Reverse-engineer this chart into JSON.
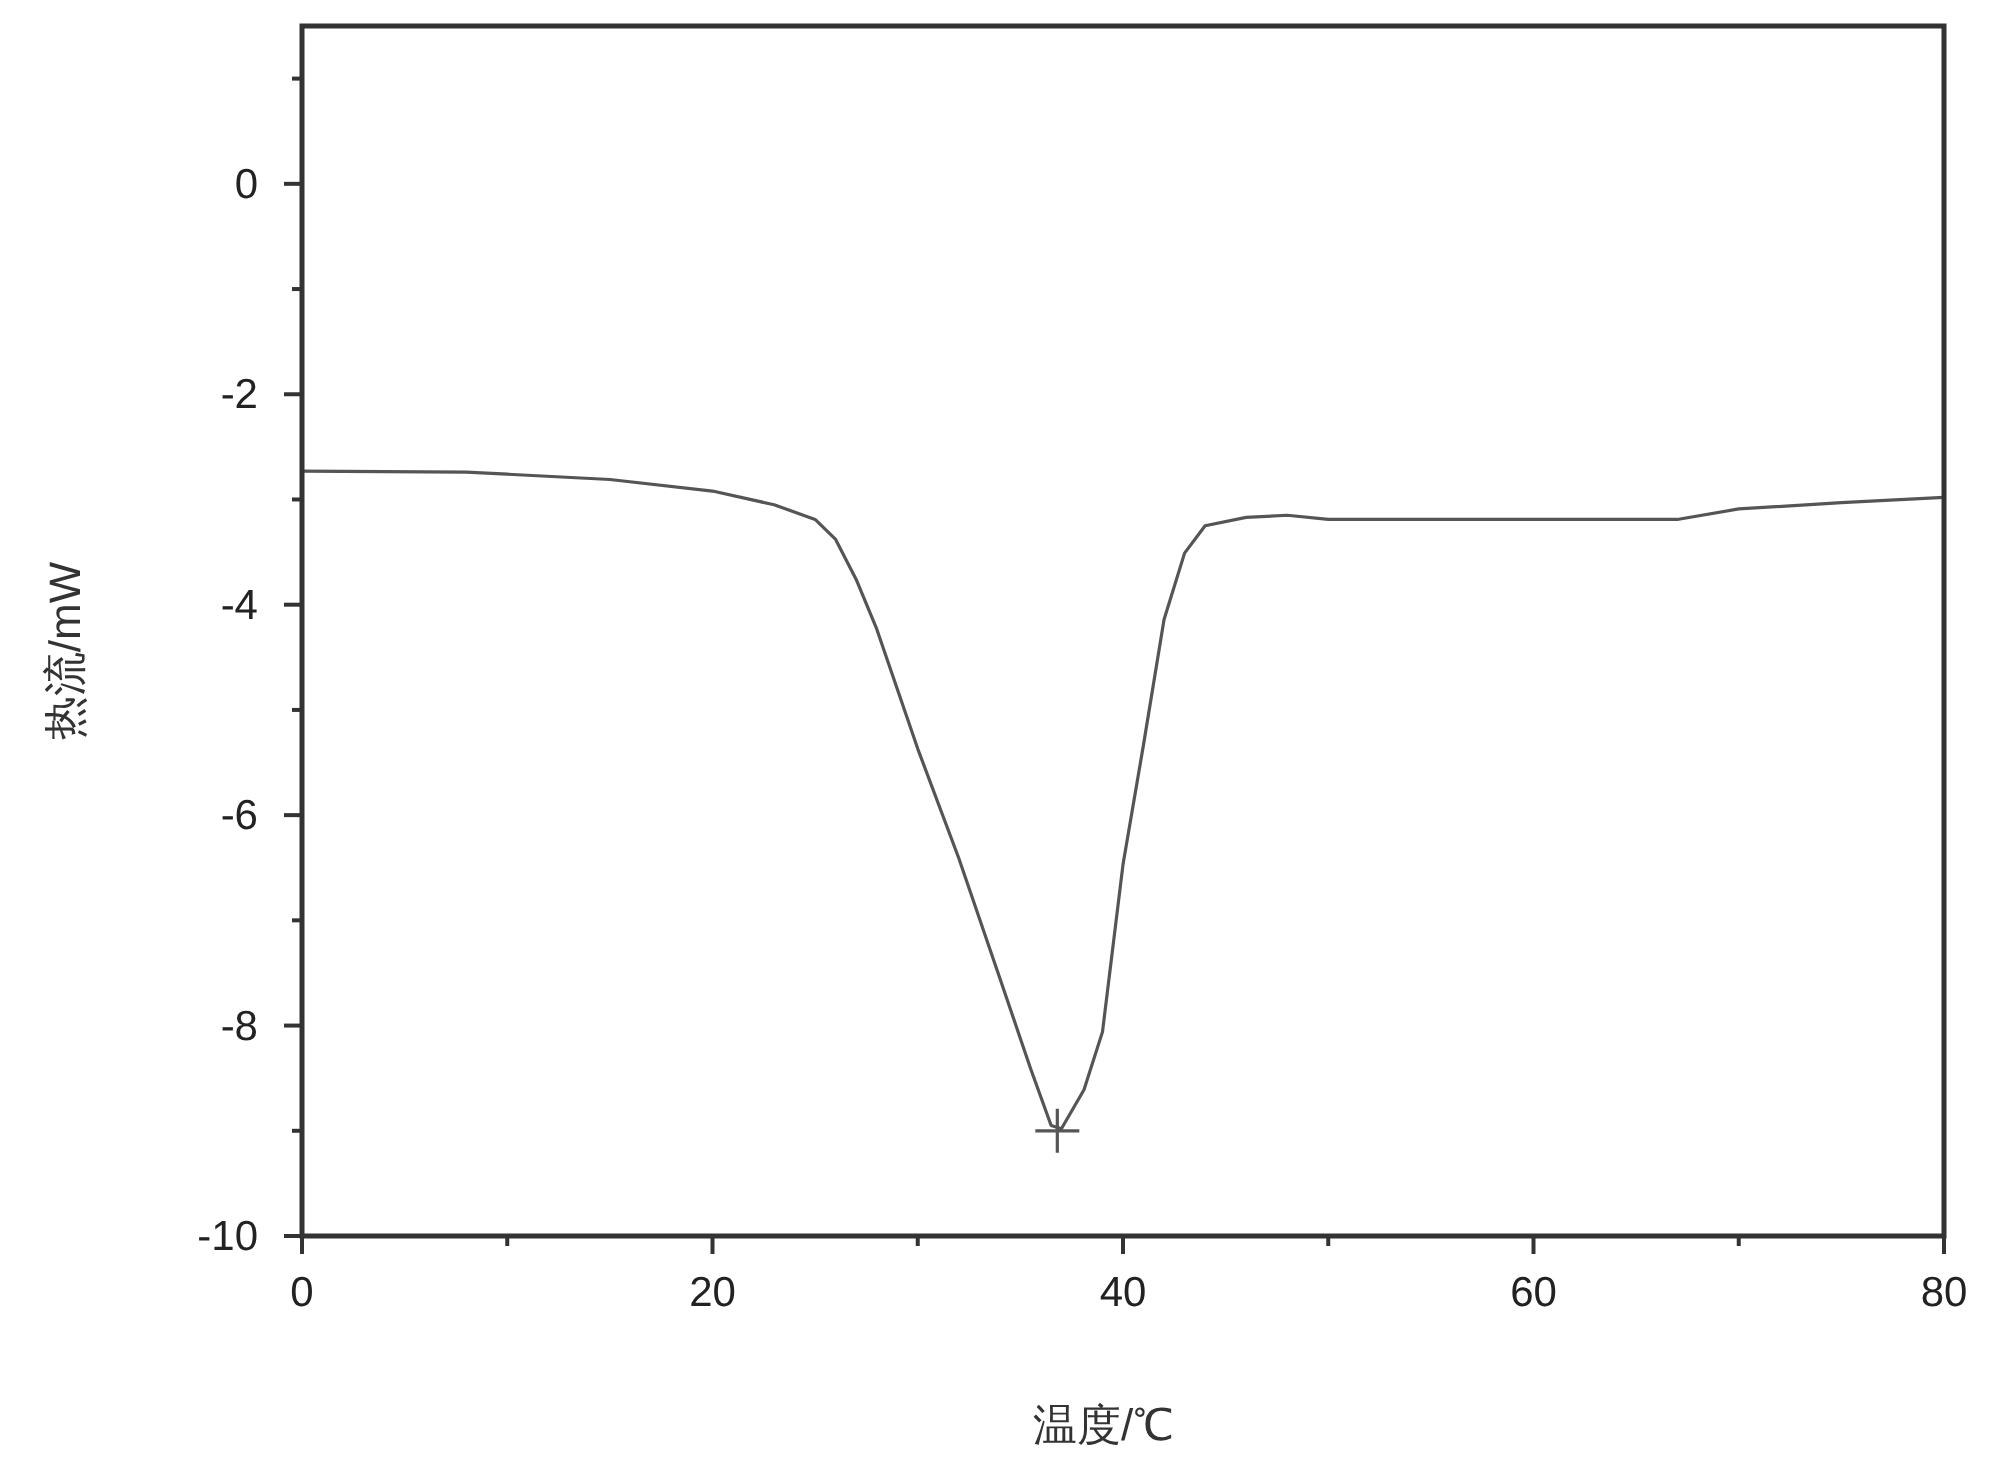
{
  "chart_data": {
    "type": "line",
    "xlabel": "温度/℃",
    "ylabel": "热流/mW",
    "xlim": [
      0,
      80
    ],
    "ylim": [
      -10,
      1.5
    ],
    "xticks": [
      0,
      {
        "value": 10,
        "label": null
      },
      20,
      {
        "value": 30,
        "label": null
      },
      40,
      {
        "value": 50,
        "label": null
      },
      60,
      {
        "value": 70,
        "label": null
      },
      80
    ],
    "yticks": [
      -10,
      {
        "value": -9,
        "label": null
      },
      -8,
      {
        "value": -7,
        "label": null
      },
      -6,
      {
        "value": -5,
        "label": null
      },
      -4,
      {
        "value": -3,
        "label": null
      },
      -2,
      {
        "value": -1,
        "label": null
      },
      0,
      {
        "value": 1,
        "label": null
      }
    ],
    "grid": false,
    "series": [
      {
        "color": "#555555",
        "marker": "none",
        "x": [
          0,
          8,
          10,
          15,
          20,
          23,
          25,
          26,
          27,
          28,
          30,
          32,
          34,
          35.5,
          36.5,
          37,
          38.1,
          39,
          40,
          41,
          42,
          43,
          44,
          46,
          48,
          50,
          60,
          67,
          70,
          75,
          80
        ],
        "values": [
          -2.73,
          -2.74,
          -2.76,
          -2.81,
          -2.92,
          -3.05,
          -3.19,
          -3.38,
          -3.76,
          -4.23,
          -5.37,
          -6.41,
          -7.55,
          -8.41,
          -8.95,
          -8.98,
          -8.61,
          -8.06,
          -6.47,
          -5.33,
          -4.14,
          -3.51,
          -3.25,
          -3.17,
          -3.15,
          -3.19,
          -3.19,
          -3.19,
          -3.09,
          -3.03,
          -2.98
        ]
      },
      {
        "type": "scatter",
        "color": "#555555",
        "marker": "cross",
        "x": [
          36.8
        ],
        "values": [
          -9.0
        ]
      }
    ]
  }
}
